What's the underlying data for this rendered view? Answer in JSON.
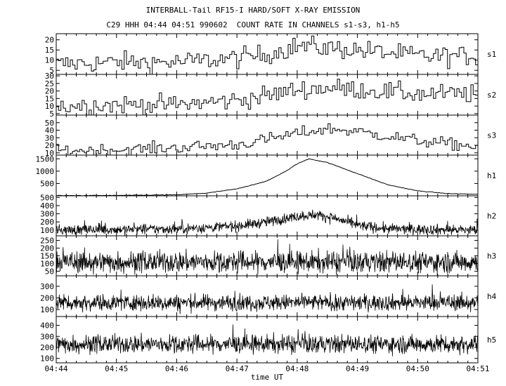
{
  "chart_data": {
    "type": "line",
    "title": "INTERBALL-Tail RF15-I HARD/SOFT X-RAY EMISSION",
    "subtitle": "C29 HHH 04:44 04:51 990602  COUNT RATE IN CHANNELS s1-s3, h1-h5",
    "xlabel": "time UT",
    "x_ticks": [
      "04:44",
      "04:45",
      "04:46",
      "04:47",
      "04:48",
      "04:49",
      "04:50",
      "04:51"
    ],
    "x_range_minutes": [
      0,
      7
    ],
    "grid": false,
    "panels": [
      {
        "name": "s1",
        "style": "step",
        "ylim": [
          3,
          23
        ],
        "yticks": [
          5,
          10,
          15,
          20
        ],
        "x": [
          0,
          1,
          2,
          3,
          3.5,
          4,
          4.5,
          5,
          6,
          7
        ],
        "y": [
          8,
          9,
          9,
          11,
          13,
          17,
          16,
          15,
          12,
          12
        ],
        "noise": 2.5,
        "n": 180
      },
      {
        "name": "s2",
        "style": "step",
        "ylim": [
          4,
          31
        ],
        "yticks": [
          5,
          10,
          15,
          20,
          25,
          30
        ],
        "x": [
          0,
          1,
          2,
          3,
          3.5,
          4,
          4.5,
          5,
          6,
          7
        ],
        "y": [
          10,
          11,
          11,
          14,
          17,
          21,
          22,
          21,
          18,
          18
        ],
        "noise": 3.2,
        "n": 180
      },
      {
        "name": "s3",
        "style": "step",
        "ylim": [
          7,
          60
        ],
        "yticks": [
          10,
          20,
          30,
          40,
          50
        ],
        "x": [
          0,
          1,
          2,
          3,
          3.5,
          4,
          4.5,
          5,
          5.5,
          6,
          7
        ],
        "y": [
          13,
          14,
          17,
          21,
          28,
          36,
          42,
          38,
          32,
          26,
          18
        ],
        "noise": 4,
        "n": 180
      },
      {
        "name": "h1",
        "style": "smooth",
        "ylim": [
          0,
          1650
        ],
        "yticks": [
          500,
          1000,
          1500
        ],
        "x": [
          0,
          1,
          2,
          2.5,
          3,
          3.5,
          3.85,
          4,
          4.2,
          4.5,
          5,
          5.5,
          6,
          6.5,
          7
        ],
        "y": [
          10,
          15,
          40,
          110,
          280,
          600,
          1050,
          1300,
          1500,
          1350,
          900,
          450,
          200,
          90,
          60
        ],
        "noise": 6,
        "n": 360
      },
      {
        "name": "h2",
        "style": "noisy",
        "ylim": [
          30,
          520
        ],
        "yticks": [
          100,
          200,
          300,
          400,
          500
        ],
        "x": [
          0,
          2,
          3,
          3.5,
          4,
          4.3,
          4.6,
          5,
          5.5,
          7
        ],
        "y": [
          100,
          115,
          150,
          200,
          270,
          290,
          250,
          160,
          115,
          100
        ],
        "noise": 32,
        "n": 1100
      },
      {
        "name": "h3",
        "style": "noisy",
        "ylim": [
          20,
          280
        ],
        "yticks": [
          50,
          100,
          150,
          200,
          250
        ],
        "x": [
          0,
          7
        ],
        "y": [
          110,
          110
        ],
        "noise": 35,
        "n": 1100
      },
      {
        "name": "h4",
        "style": "noisy",
        "ylim": [
          40,
          390
        ],
        "yticks": [
          100,
          200,
          300
        ],
        "x": [
          0,
          7
        ],
        "y": [
          160,
          160
        ],
        "noise": 35,
        "n": 1100
      },
      {
        "name": "h5",
        "style": "noisy",
        "ylim": [
          60,
          480
        ],
        "yticks": [
          100,
          200,
          300,
          400
        ],
        "x": [
          0,
          7
        ],
        "y": [
          230,
          230
        ],
        "noise": 42,
        "n": 1100
      }
    ]
  }
}
